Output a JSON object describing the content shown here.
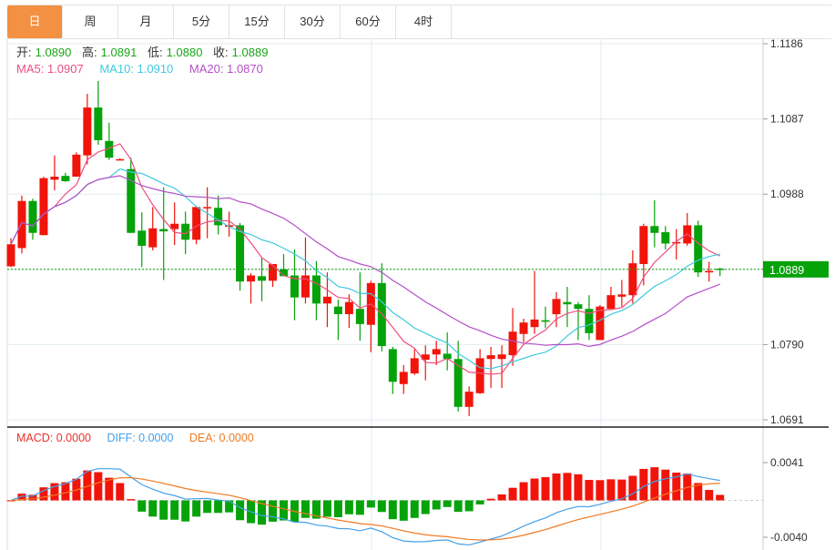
{
  "tabs": [
    "日",
    "周",
    "月",
    "5分",
    "15分",
    "30分",
    "60分",
    "4时"
  ],
  "active_tab": 0,
  "ohlc": {
    "open_label": "开:",
    "open": "1.0890",
    "high_label": "高:",
    "high": "1.0891",
    "low_label": "低:",
    "low": "1.0880",
    "close_label": "收:",
    "close": "1.0889"
  },
  "ma": {
    "ma5": "MA5: 1.0907",
    "ma10": "MA10: 1.0910",
    "ma20": "MA20: 1.0870"
  },
  "macd_info": {
    "macd": "MACD: 0.0000",
    "diff": "DIFF: 0.0000",
    "dea": "DEA: 0.0000"
  },
  "current_price": "1.0889",
  "colors": {
    "up": "#f0140a",
    "down": "#06a20a",
    "ma5": "#ee4d7f",
    "ma10": "#3fc9e0",
    "ma20": "#b44fc9",
    "diff": "#45a0e8",
    "dea": "#f07a22",
    "accent": "#f39041"
  },
  "chart_data": {
    "type": "candlestick",
    "price_axis": {
      "ticks": [
        "1.1186",
        "1.1087",
        "1.0988",
        "1.0889",
        "1.0790",
        "1.0691"
      ],
      "range": [
        1.0691,
        1.1186
      ]
    },
    "macd_axis": {
      "ticks": [
        "0.0041",
        "-0.0040"
      ],
      "range": [
        -0.004,
        0.0041
      ]
    },
    "candles": [
      [
        1.0893,
        1.093,
        1.0892,
        1.0922
      ],
      [
        1.0917,
        1.0986,
        1.091,
        1.0979
      ],
      [
        1.0979,
        1.0982,
        1.0928,
        1.0937
      ],
      [
        1.0934,
        1.1011,
        1.0934,
        1.1009
      ],
      [
        1.1007,
        1.1039,
        1.0993,
        1.1011
      ],
      [
        1.1012,
        1.1016,
        1.1004,
        1.1005
      ],
      [
        1.1011,
        1.1043,
        1.1011,
        1.104
      ],
      [
        1.1039,
        1.112,
        1.1027,
        1.1102
      ],
      [
        1.1102,
        1.1137,
        1.1053,
        1.1059
      ],
      [
        1.1058,
        1.1082,
        1.1033,
        1.1036
      ],
      [
        1.1034,
        1.1035,
        1.1033,
        1.1034
      ],
      [
        1.1021,
        1.1036,
        1.0937,
        1.0937
      ],
      [
        1.094,
        1.0964,
        1.0892,
        1.092
      ],
      [
        1.0918,
        1.0971,
        1.0914,
        1.0943
      ],
      [
        1.0942,
        1.0997,
        1.0875,
        1.0939
      ],
      [
        1.0942,
        1.0977,
        1.0921,
        1.0949
      ],
      [
        1.0949,
        1.0965,
        1.0909,
        1.0928
      ],
      [
        1.0928,
        1.0971,
        1.0922,
        1.0971
      ],
      [
        1.097,
        1.0997,
        1.093,
        1.0971
      ],
      [
        1.097,
        1.0986,
        1.0935,
        1.0947
      ],
      [
        1.0945,
        1.0965,
        1.0932,
        1.0947
      ],
      [
        1.0947,
        1.095,
        1.0861,
        1.0873
      ],
      [
        1.0873,
        1.0884,
        1.0844,
        1.0881
      ],
      [
        1.088,
        1.0905,
        1.0847,
        1.0874
      ],
      [
        1.0874,
        1.0896,
        1.0866,
        1.0896
      ],
      [
        1.0889,
        1.0909,
        1.088,
        1.088
      ],
      [
        1.0881,
        1.0915,
        1.0822,
        1.0852
      ],
      [
        1.0852,
        1.0931,
        1.0844,
        1.0881
      ],
      [
        1.0881,
        1.09,
        1.0822,
        1.0844
      ],
      [
        1.0844,
        1.0885,
        1.0813,
        1.0853
      ],
      [
        1.084,
        1.0849,
        1.0796,
        1.083
      ],
      [
        1.083,
        1.0856,
        1.0812,
        1.0846
      ],
      [
        1.0837,
        1.0885,
        1.0795,
        1.0817
      ],
      [
        1.0816,
        1.0874,
        1.078,
        1.0871
      ],
      [
        1.0871,
        1.0897,
        1.0781,
        1.0788
      ],
      [
        1.0784,
        1.0787,
        1.0725,
        1.0741
      ],
      [
        1.0738,
        1.0763,
        1.0725,
        1.0754
      ],
      [
        1.0752,
        1.0784,
        1.075,
        1.0772
      ],
      [
        1.077,
        1.0789,
        1.0743,
        1.0777
      ],
      [
        1.0777,
        1.0795,
        1.0763,
        1.0784
      ],
      [
        1.0778,
        1.0806,
        1.0756,
        1.0771
      ],
      [
        1.0771,
        1.0795,
        1.0702,
        1.0708
      ],
      [
        1.0708,
        1.0735,
        1.0696,
        1.0728
      ],
      [
        1.0726,
        1.0784,
        1.0725,
        1.0772
      ],
      [
        1.0771,
        1.0787,
        1.0733,
        1.0776
      ],
      [
        1.0771,
        1.0789,
        1.0733,
        1.0777
      ],
      [
        1.0776,
        1.0838,
        1.0762,
        1.0807
      ],
      [
        1.0804,
        1.0824,
        1.0793,
        1.0819
      ],
      [
        1.0813,
        1.0887,
        1.0804,
        1.0823
      ],
      [
        1.0822,
        1.084,
        1.0812,
        1.082
      ],
      [
        1.083,
        1.0859,
        1.0813,
        1.085
      ],
      [
        1.0846,
        1.0866,
        1.0813,
        1.0843
      ],
      [
        1.0843,
        1.0846,
        1.0796,
        1.0837
      ],
      [
        1.0837,
        1.0855,
        1.0796,
        1.0805
      ],
      [
        1.0796,
        1.0842,
        1.0796,
        1.084
      ],
      [
        1.0837,
        1.0866,
        1.0837,
        1.0855
      ],
      [
        1.0853,
        1.0875,
        1.084,
        1.0856
      ],
      [
        1.0855,
        1.0914,
        1.0844,
        1.0897
      ],
      [
        1.0896,
        1.0949,
        1.0868,
        1.0946
      ],
      [
        1.0946,
        1.098,
        1.0918,
        1.0937
      ],
      [
        1.0938,
        1.0946,
        1.0915,
        1.0923
      ],
      [
        1.0923,
        1.0942,
        1.0902,
        1.0925
      ],
      [
        1.0923,
        1.0963,
        1.092,
        1.0947
      ],
      [
        1.0947,
        1.0953,
        1.0879,
        1.0885
      ],
      [
        1.0885,
        1.0899,
        1.0873,
        1.0887
      ],
      [
        1.089,
        1.0891,
        1.088,
        1.0889
      ]
    ]
  }
}
